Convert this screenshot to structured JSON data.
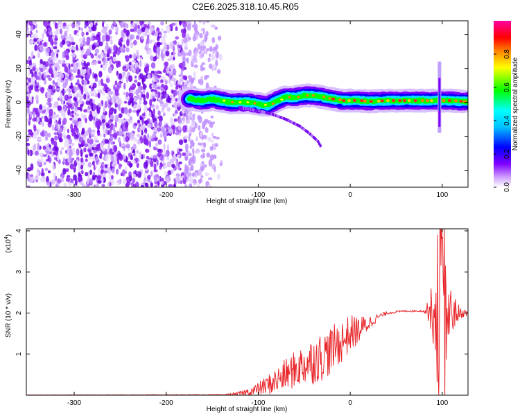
{
  "title": "C2E6.2025.318.10.45.R05",
  "chart_data": [
    {
      "type": "heatmap",
      "xlabel": "Height of straight line (km)",
      "ylabel": "Frequency (Hz)",
      "xlim": [
        -352,
        128
      ],
      "ylim": [
        -50,
        48
      ],
      "x_ticks": [
        -300,
        -200,
        -100,
        0,
        100
      ],
      "y_ticks": [
        -40,
        -20,
        0,
        20,
        40
      ],
      "colorbar": {
        "label": "Normalized spectral amplitude",
        "range": [
          0,
          1
        ],
        "ticks": [
          "0.0",
          "0.2",
          "0.4",
          "0.6",
          "0.8"
        ],
        "tick_values": [
          0,
          0.2,
          0.4,
          0.6,
          0.8
        ],
        "colors": [
          "#ffffff",
          "#c080ff",
          "#8000ff",
          "#0000ff",
          "#00ffff",
          "#00ff00",
          "#ffff00",
          "#ff8000",
          "#ff0000",
          "#ff00a0"
        ]
      },
      "noise_region_x": [
        -352,
        -140
      ],
      "main_trace": {
        "x": [
          -175,
          -160,
          -150,
          -140,
          -130,
          -120,
          -110,
          -100,
          -90,
          -80,
          -70,
          -60,
          -50,
          -40,
          -30,
          -20,
          -10,
          0,
          10,
          20,
          40,
          60,
          80,
          90,
          95,
          100,
          110,
          120,
          128
        ],
        "y": [
          2,
          1,
          2,
          1,
          0,
          0,
          0,
          -1,
          -2,
          1,
          3,
          3,
          4,
          4,
          3,
          2,
          1,
          1,
          1,
          0.5,
          1,
          1,
          1,
          1,
          1,
          1,
          1,
          0.5,
          0.5
        ]
      },
      "secondary_trace": {
        "x": [
          -120,
          -100,
          -85,
          -70,
          -55,
          -45,
          -35,
          -32
        ],
        "y": [
          -3,
          -5,
          -7,
          -10,
          -14,
          -18,
          -23,
          -26
        ]
      },
      "spike": {
        "x": 97,
        "y_range": [
          -18,
          24
        ]
      }
    },
    {
      "type": "line",
      "xlabel": "Height of straight line (km)",
      "ylabel": "SNR (10 * v/v)",
      "scale_label": "(x10",
      "scale_exp": "4",
      "xlim": [
        -352,
        128
      ],
      "ylim": [
        0,
        4.05
      ],
      "x_ticks": [
        -300,
        -200,
        -100,
        0,
        100
      ],
      "y_ticks": [
        1,
        2,
        3,
        4
      ],
      "color": "#e8262a",
      "envelope": {
        "x": [
          -352,
          -140,
          -130,
          -120,
          -110,
          -100,
          -90,
          -80,
          -70,
          -60,
          -50,
          -40,
          -30,
          -20,
          -10,
          0,
          10,
          20,
          30,
          40,
          50,
          60,
          70,
          80,
          85,
          90,
          95,
          100,
          105,
          110,
          115,
          120,
          128
        ],
        "y": [
          0.005,
          0.01,
          0.02,
          0.04,
          0.08,
          0.15,
          0.25,
          0.35,
          0.5,
          0.62,
          0.75,
          0.85,
          0.95,
          1.1,
          1.3,
          1.5,
          1.6,
          1.75,
          1.9,
          2.0,
          2.03,
          2.05,
          2.05,
          2.05,
          2.05,
          2.05,
          2.05,
          2.1,
          2.05,
          2.0,
          2.0,
          2.0,
          2.0
        ]
      },
      "fluctuation": {
        "x": [
          -352,
          -140,
          -130,
          -120,
          -110,
          -100,
          -90,
          -80,
          -70,
          -60,
          -50,
          -40,
          -30,
          -20,
          -10,
          0,
          10,
          20,
          30,
          40,
          50,
          80,
          85,
          90,
          95,
          100,
          105,
          110,
          120,
          128
        ],
        "y": [
          0.002,
          0.005,
          0.02,
          0.04,
          0.08,
          0.12,
          0.18,
          0.25,
          0.3,
          0.35,
          0.4,
          0.45,
          0.45,
          0.45,
          0.4,
          0.35,
          0.25,
          0.15,
          0.06,
          0.03,
          0.02,
          0.02,
          0.2,
          0.5,
          1.2,
          1.8,
          1.1,
          0.4,
          0.1,
          0.05
        ]
      }
    }
  ]
}
